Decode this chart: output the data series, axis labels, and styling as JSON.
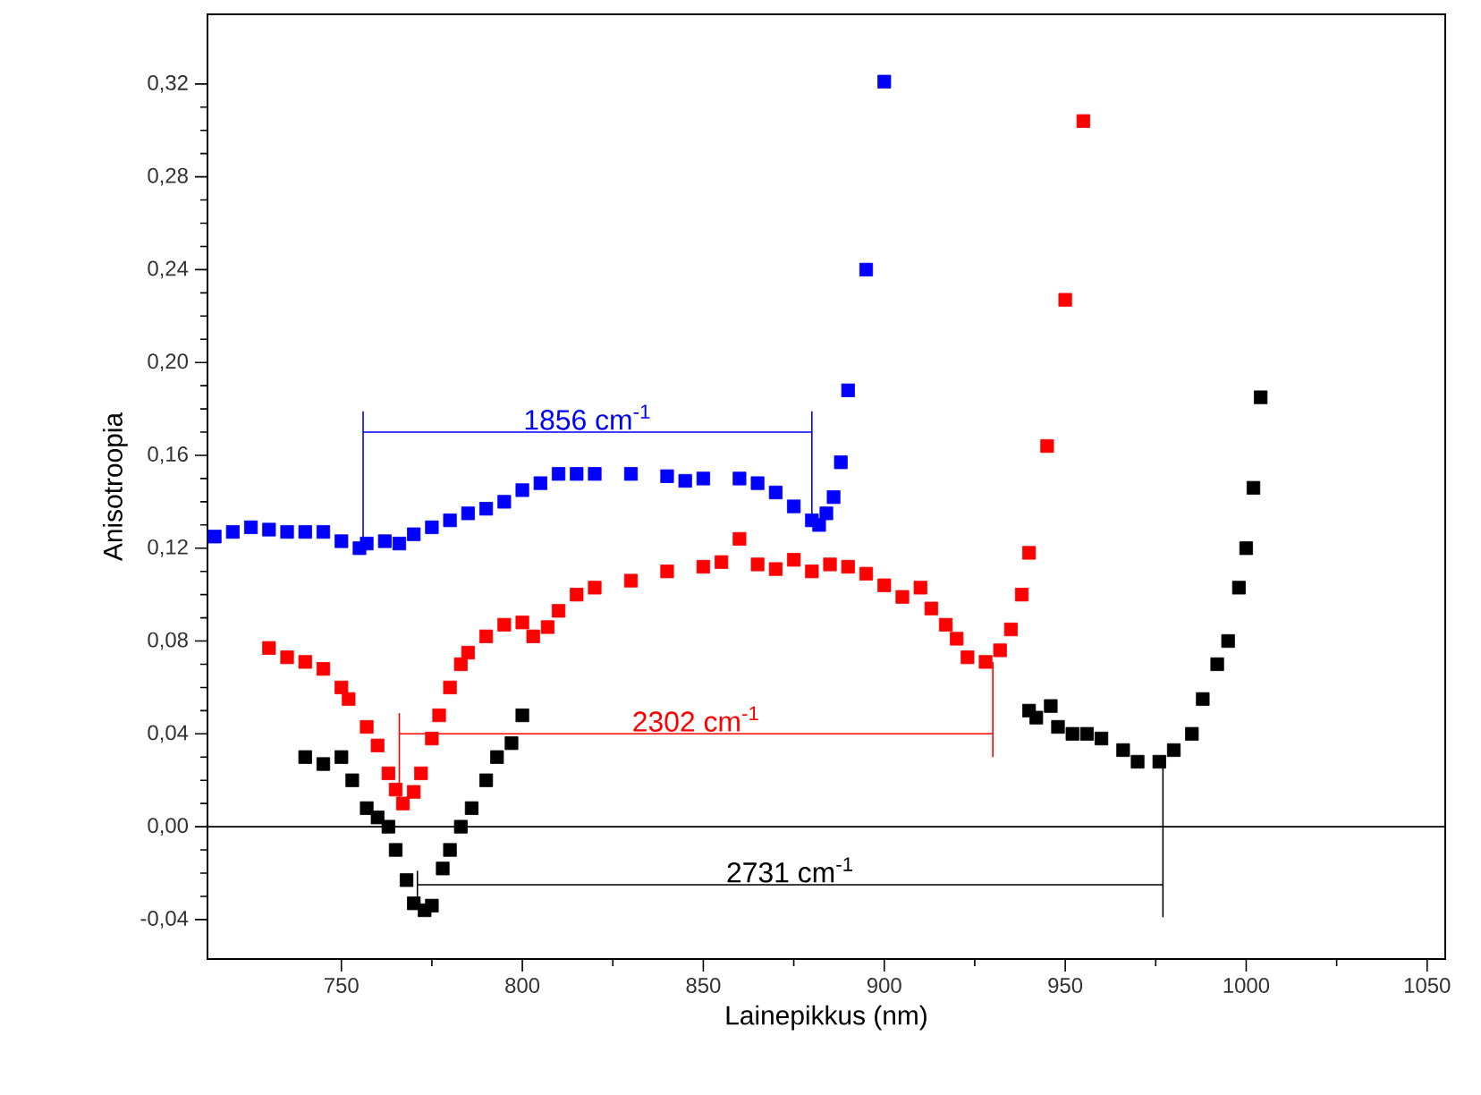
{
  "chart_data": {
    "type": "scatter",
    "xlabel": "Lainepikkus (nm)",
    "ylabel": "Anisotroopia",
    "marker": "square",
    "grid": false,
    "xlim": [
      713,
      1055
    ],
    "xticks": [
      750,
      800,
      850,
      900,
      950,
      1000,
      1050
    ],
    "ylim": [
      -0.057,
      0.35
    ],
    "yticks": [
      {
        "value": -0.04,
        "label": "-0,04"
      },
      {
        "value": 0,
        "label": "0,00"
      },
      {
        "value": 0.04,
        "label": "0,04"
      },
      {
        "value": 0.08,
        "label": "0,08"
      },
      {
        "value": 0.12,
        "label": "0,12"
      },
      {
        "value": 0.16,
        "label": "0,16"
      },
      {
        "value": 0.2,
        "label": "0,20"
      },
      {
        "value": 0.24,
        "label": "0,24"
      },
      {
        "value": 0.28,
        "label": "0,28"
      },
      {
        "value": 0.32,
        "label": "0,32"
      }
    ],
    "ref_lines": [
      {
        "axis": "y",
        "value": 0,
        "color": "#000000"
      }
    ],
    "series": [
      {
        "color": "#0000ff",
        "x": [
          715,
          720,
          725,
          730,
          735,
          740,
          745,
          750,
          755,
          757,
          762,
          766,
          770,
          775,
          780,
          785,
          790,
          795,
          800,
          805,
          810,
          815,
          820,
          830,
          840,
          845,
          850,
          860,
          865,
          870,
          875,
          880,
          882,
          884,
          886,
          888,
          890,
          895,
          900
        ],
        "values": [
          0.125,
          0.127,
          0.129,
          0.128,
          0.127,
          0.127,
          0.127,
          0.123,
          0.12,
          0.122,
          0.123,
          0.122,
          0.126,
          0.129,
          0.132,
          0.135,
          0.137,
          0.14,
          0.145,
          0.148,
          0.152,
          0.152,
          0.152,
          0.152,
          0.151,
          0.149,
          0.15,
          0.15,
          0.148,
          0.144,
          0.138,
          0.132,
          0.13,
          0.135,
          0.142,
          0.157,
          0.188,
          0.24,
          0.321
        ]
      },
      {
        "color": "#ff0000",
        "x": [
          730,
          735,
          740,
          745,
          750,
          752,
          757,
          760,
          763,
          765,
          767,
          770,
          772,
          775,
          777,
          780,
          783,
          785,
          790,
          795,
          800,
          803,
          807,
          810,
          815,
          820,
          830,
          840,
          850,
          855,
          860,
          865,
          870,
          875,
          880,
          885,
          890,
          895,
          900,
          905,
          910,
          913,
          917,
          920,
          923,
          928,
          932,
          935,
          938,
          940,
          945,
          950,
          955
        ],
        "values": [
          0.077,
          0.073,
          0.071,
          0.068,
          0.06,
          0.055,
          0.043,
          0.035,
          0.023,
          0.016,
          0.01,
          0.015,
          0.023,
          0.038,
          0.048,
          0.06,
          0.07,
          0.075,
          0.082,
          0.087,
          0.088,
          0.082,
          0.086,
          0.093,
          0.1,
          0.103,
          0.106,
          0.11,
          0.112,
          0.114,
          0.124,
          0.113,
          0.111,
          0.115,
          0.11,
          0.113,
          0.112,
          0.109,
          0.104,
          0.099,
          0.103,
          0.094,
          0.087,
          0.081,
          0.073,
          0.071,
          0.076,
          0.085,
          0.1,
          0.118,
          0.164,
          0.227,
          0.304
        ]
      },
      {
        "color": "#000000",
        "x": [
          740,
          745,
          750,
          753,
          757,
          760,
          763,
          765,
          768,
          770,
          773,
          775,
          778,
          780,
          783,
          786,
          790,
          793,
          797,
          800,
          940,
          942,
          946,
          948,
          952,
          956,
          960,
          966,
          970,
          976,
          980,
          985,
          988,
          992,
          995,
          998,
          1000,
          1002,
          1004
        ],
        "values": [
          0.03,
          0.027,
          0.03,
          0.02,
          0.008,
          0.004,
          0.0,
          -0.01,
          -0.023,
          -0.033,
          -0.036,
          -0.034,
          -0.018,
          -0.01,
          0.0,
          0.008,
          0.02,
          0.03,
          0.036,
          0.048,
          0.05,
          0.047,
          0.052,
          0.043,
          0.04,
          0.04,
          0.038,
          0.033,
          0.028,
          0.028,
          0.033,
          0.04,
          0.055,
          0.07,
          0.08,
          0.103,
          0.12,
          0.146,
          0.185
        ]
      },
      {
        "type": "line",
        "marker": "none",
        "color": "#0000ff",
        "x": [
          756,
          880
        ],
        "values": [
          0.17,
          0.17
        ],
        "errors": [
          [
            0.121,
            0.179
          ],
          [
            0.13,
            0.179
          ]
        ]
      },
      {
        "type": "line",
        "marker": "none",
        "color": "#ff0000",
        "x": [
          766,
          930
        ],
        "values": [
          0.04,
          0.04
        ],
        "errors": [
          [
            0.009,
            0.049
          ],
          [
            0.03,
            0.071
          ]
        ]
      },
      {
        "type": "line",
        "marker": "none",
        "color": "#000000",
        "x": [
          771,
          977
        ],
        "values": [
          -0.025,
          -0.025
        ],
        "errors": [
          [
            -0.031,
            -0.019
          ],
          [
            -0.039,
            0.027
          ]
        ]
      }
    ],
    "annotations": [
      "1856 cm$^{-1}$",
      "2302 cm$^{-1}$",
      "2731 cm$^{-1}$"
    ]
  }
}
